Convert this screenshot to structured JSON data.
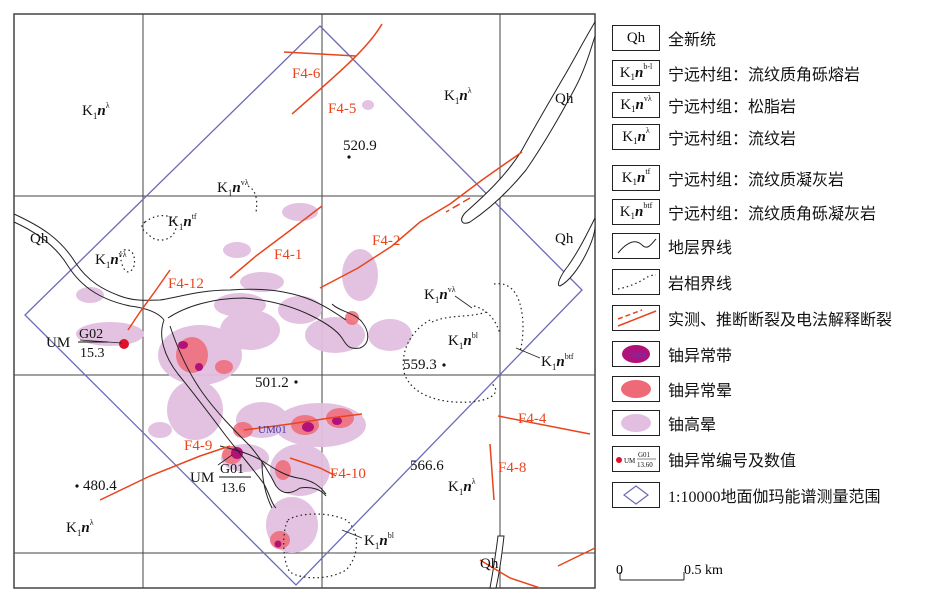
{
  "map": {
    "units": [
      {
        "id": "K1n_lambda_1",
        "base": "K",
        "sub": "1",
        "n": "n",
        "sup": "λ"
      },
      {
        "id": "K1n_lambda_2",
        "base": "K",
        "sub": "1",
        "n": "n",
        "sup": "λ"
      },
      {
        "id": "K1n_lambda_3",
        "base": "K",
        "sub": "1",
        "n": "n",
        "sup": "λ"
      },
      {
        "id": "K1n_lambda_4",
        "base": "K",
        "sub": "1",
        "n": "n",
        "sup": "λ"
      },
      {
        "id": "K1n_vlambda_1",
        "base": "K",
        "sub": "1",
        "n": "n",
        "sup": "vλ"
      },
      {
        "id": "K1n_vlambda_2",
        "base": "K",
        "sub": "1",
        "n": "n",
        "sup": "vλ"
      },
      {
        "id": "K1n_vlambda_3",
        "base": "K",
        "sub": "1",
        "n": "n",
        "sup": "vλ"
      },
      {
        "id": "K1n_tf",
        "base": "K",
        "sub": "1",
        "n": "n",
        "sup": "tf"
      },
      {
        "id": "K1n_bl_1",
        "base": "K",
        "sub": "1",
        "n": "n",
        "sup": "bl"
      },
      {
        "id": "K1n_bl_2",
        "base": "K",
        "sub": "1",
        "n": "n",
        "sup": "bl"
      },
      {
        "id": "K1n_btf",
        "base": "K",
        "sub": "1",
        "n": "n",
        "sup": "btf"
      }
    ],
    "qh_labels": [
      "Qh",
      "Qh",
      "Qh",
      "Qh"
    ],
    "faults": [
      "F4-6",
      "F4-5",
      "F4-2",
      "F4-1",
      "F4-12",
      "F4-9",
      "F4-10",
      "F4-4",
      "F4-8"
    ],
    "elevations": [
      "520.9",
      "559.3",
      "501.2",
      "566.6",
      "480.4"
    ],
    "anomalies": {
      "um01": "UM01",
      "g02_prefix": "UM",
      "g02_code": "G02",
      "g02_value": "15.3",
      "g01_prefix": "UM",
      "g01_code": "G01",
      "g01_value": "13.6"
    }
  },
  "legend": {
    "items": [
      {
        "symbol": "Qh",
        "text": "全新统"
      },
      {
        "symbol": "K1nbl",
        "text": "宁远村组：流纹质角砾熔岩"
      },
      {
        "symbol": "K1nvλ",
        "text": "宁远村组：松脂岩"
      },
      {
        "symbol": "K1nλ",
        "text": "宁远村组：流纹岩"
      },
      {
        "symbol": "K1ntf",
        "text": "宁远村组：流纹质凝灰岩"
      },
      {
        "symbol": "K1nbtf",
        "text": "宁远村组：流纹质角砾凝灰岩"
      },
      {
        "symbol": "stratum-line",
        "text": "地层界线"
      },
      {
        "symbol": "facies-line",
        "text": "岩相界线"
      },
      {
        "symbol": "fault",
        "text": "实测、推断断裂及电法解释断裂"
      },
      {
        "symbol": "uranium-band",
        "text": "铀异常带"
      },
      {
        "symbol": "uranium-halo",
        "text": "铀异常晕"
      },
      {
        "symbol": "uranium-high-halo",
        "text": "铀高晕"
      },
      {
        "symbol": "anomaly-number",
        "text": "铀异常编号及数值"
      },
      {
        "symbol": "survey-range",
        "text": "1:10000地面伽玛能谱测量范围"
      }
    ],
    "box_labels": {
      "qh": "Qh",
      "k": "K",
      "sub": "1",
      "n": "n",
      "sup_bl": "b-l",
      "sup_vl": "vλ",
      "sup_l": "λ",
      "sup_tf": "tf",
      "sup_btf": "btf",
      "um01": "UM01",
      "anomaly_prefix": "UM",
      "anomaly_code": "G01",
      "anomaly_value": "13.60"
    }
  },
  "scale": {
    "zero": "0",
    "label": "0.5 km"
  },
  "colors": {
    "fault": "#e8451c",
    "survey": "#6b6bb8",
    "band": "#b0127a",
    "halo": "#ef6a77",
    "high_halo": "#e2bfe0",
    "grid": "#555555",
    "qh_fill": "#ffffff"
  }
}
